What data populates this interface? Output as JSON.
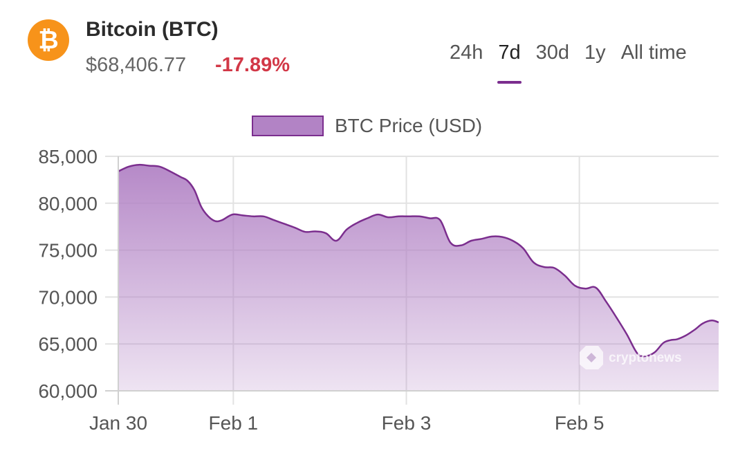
{
  "header": {
    "logo_glyph": "₿",
    "coin_name": "Bitcoin (BTC)",
    "price": "$68,406.77",
    "change": "-17.89%",
    "logo_color": "#f7931a",
    "change_color": "#d23847"
  },
  "ranges": [
    {
      "label": "24h",
      "active": false
    },
    {
      "label": "7d",
      "active": true
    },
    {
      "label": "30d",
      "active": false
    },
    {
      "label": "1y",
      "active": false
    },
    {
      "label": "All time",
      "active": false
    }
  ],
  "accent_color": "#7b2e8e",
  "watermark": "cryptonews",
  "chart_data": {
    "type": "area",
    "legend_position": "top-center",
    "grid": true,
    "ylim": [
      60000,
      85000
    ],
    "yticks": [
      {
        "value": 60000,
        "label": "60,000"
      },
      {
        "value": 65000,
        "label": "65,000"
      },
      {
        "value": 70000,
        "label": "70,000"
      },
      {
        "value": 75000,
        "label": "75,000"
      },
      {
        "value": 80000,
        "label": "80,000"
      },
      {
        "value": 85000,
        "label": "85,000"
      }
    ],
    "xlim": [
      0,
      6.94
    ],
    "xticks": [
      {
        "value": 0,
        "label": "Jan 30"
      },
      {
        "value": 1.33,
        "label": "Feb 1"
      },
      {
        "value": 3.33,
        "label": "Feb 3"
      },
      {
        "value": 5.33,
        "label": "Feb 5"
      }
    ],
    "series": [
      {
        "name": "BTC Price (USD)",
        "color": "#7b2e8e",
        "fill": "#b283c5",
        "x": [
          0,
          0.12,
          0.24,
          0.36,
          0.48,
          0.6,
          0.72,
          0.8,
          0.88,
          0.96,
          1.04,
          1.12,
          1.2,
          1.32,
          1.44,
          1.56,
          1.68,
          1.8,
          1.92,
          2.04,
          2.16,
          2.28,
          2.4,
          2.52,
          2.64,
          2.76,
          2.88,
          3.0,
          3.12,
          3.24,
          3.36,
          3.48,
          3.6,
          3.72,
          3.84,
          3.96,
          4.08,
          4.2,
          4.32,
          4.44,
          4.56,
          4.68,
          4.8,
          4.92,
          5.04,
          5.16,
          5.28,
          5.4,
          5.52,
          5.64,
          5.76,
          5.88,
          6.0,
          6.1,
          6.2,
          6.3,
          6.38,
          6.46,
          6.56,
          6.66,
          6.76,
          6.86,
          6.94
        ],
        "values": [
          83400,
          83900,
          84100,
          84000,
          83900,
          83400,
          82800,
          82400,
          81400,
          79600,
          78600,
          78100,
          78200,
          78800,
          78700,
          78600,
          78600,
          78200,
          77800,
          77400,
          76950,
          77000,
          76800,
          76000,
          77200,
          77900,
          78400,
          78800,
          78500,
          78600,
          78600,
          78600,
          78400,
          78200,
          75800,
          75500,
          76000,
          76200,
          76450,
          76400,
          76000,
          75200,
          73700,
          73200,
          73100,
          72300,
          71200,
          70900,
          71000,
          69500,
          67800,
          66000,
          64000,
          63700,
          64100,
          65100,
          65400,
          65500,
          65900,
          66500,
          67200,
          67500,
          67300
        ]
      }
    ]
  }
}
